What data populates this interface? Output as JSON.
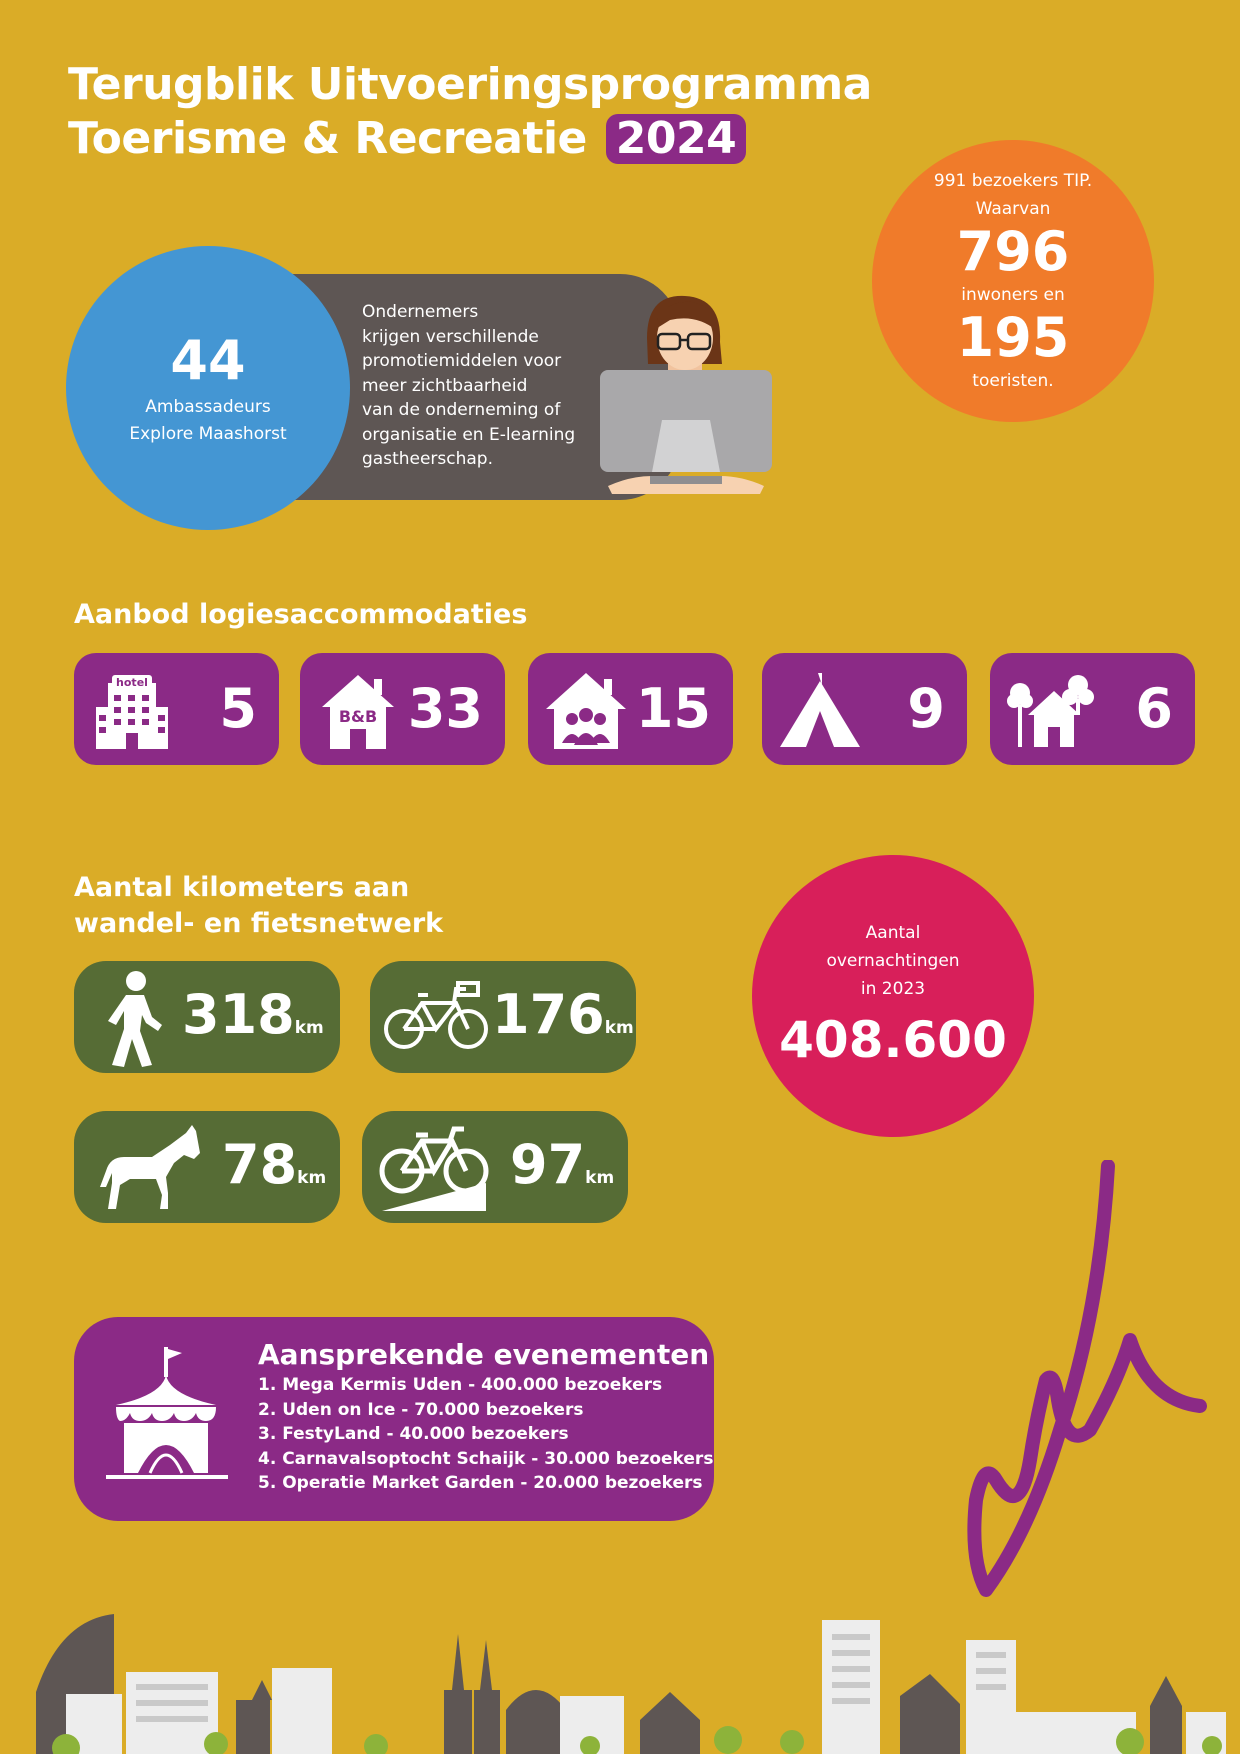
{
  "title": {
    "line1": "Terugblik Uitvoeringsprogramma",
    "line2": "Toerisme & Recreatie",
    "year": "2024"
  },
  "tip": {
    "line1": "991 bezoekers TIP.",
    "line2": "Waarvan",
    "residents": "796",
    "residents_label": "inwoners en",
    "tourists": "195",
    "tourists_label": "toeristen."
  },
  "ambassadors": {
    "count": "44",
    "label_line1": "Ambassadeurs",
    "label_line2": "Explore Maashorst",
    "description": [
      "Ondernemers",
      "krijgen verschillende",
      "promotiemiddelen voor",
      "meer zichtbaarheid",
      "van de onderneming of",
      "organisatie en E-learning",
      "gastheerschap."
    ]
  },
  "accommodations": {
    "heading": "Aanbod logiesaccommodaties",
    "items": [
      {
        "icon": "hotel-icon",
        "sign": "hotel",
        "count": "5"
      },
      {
        "icon": "bnb-icon",
        "sign": "B&B",
        "count": "33"
      },
      {
        "icon": "group-accommodation-icon",
        "count": "15"
      },
      {
        "icon": "tent-icon",
        "count": "9"
      },
      {
        "icon": "holiday-home-icon",
        "count": "6"
      }
    ]
  },
  "network": {
    "heading_line1": "Aantal kilometers aan",
    "heading_line2": "wandel- en fietsnetwerk",
    "unit": "km",
    "items": [
      {
        "icon": "walking-icon",
        "value": "318"
      },
      {
        "icon": "bicycle-icon",
        "value": "176"
      },
      {
        "icon": "horse-icon",
        "value": "78"
      },
      {
        "icon": "mountain-bike-icon",
        "value": "97"
      }
    ]
  },
  "overnight": {
    "line1": "Aantal",
    "line2": "overnachtingen",
    "line3": "in 2023",
    "value": "408.600"
  },
  "events": {
    "heading": "Aansprekende evenementen",
    "items": [
      "1. Mega Kermis Uden - 400.000 bezoekers",
      "2. Uden on Ice - 70.000 bezoekers",
      "3. FestyLand - 40.000 bezoekers",
      "4. Carnavalsoptocht Schaijk - 30.000 bezoekers",
      "5. Operatie Market Garden - 20.000 bezoekers"
    ]
  },
  "colors": {
    "background": "#DAAC27",
    "purple": "#8B2A86",
    "orange": "#F07B2A",
    "blue": "#4496D3",
    "grey": "#5E5654",
    "green": "#566C35",
    "pink": "#D81F5A"
  }
}
